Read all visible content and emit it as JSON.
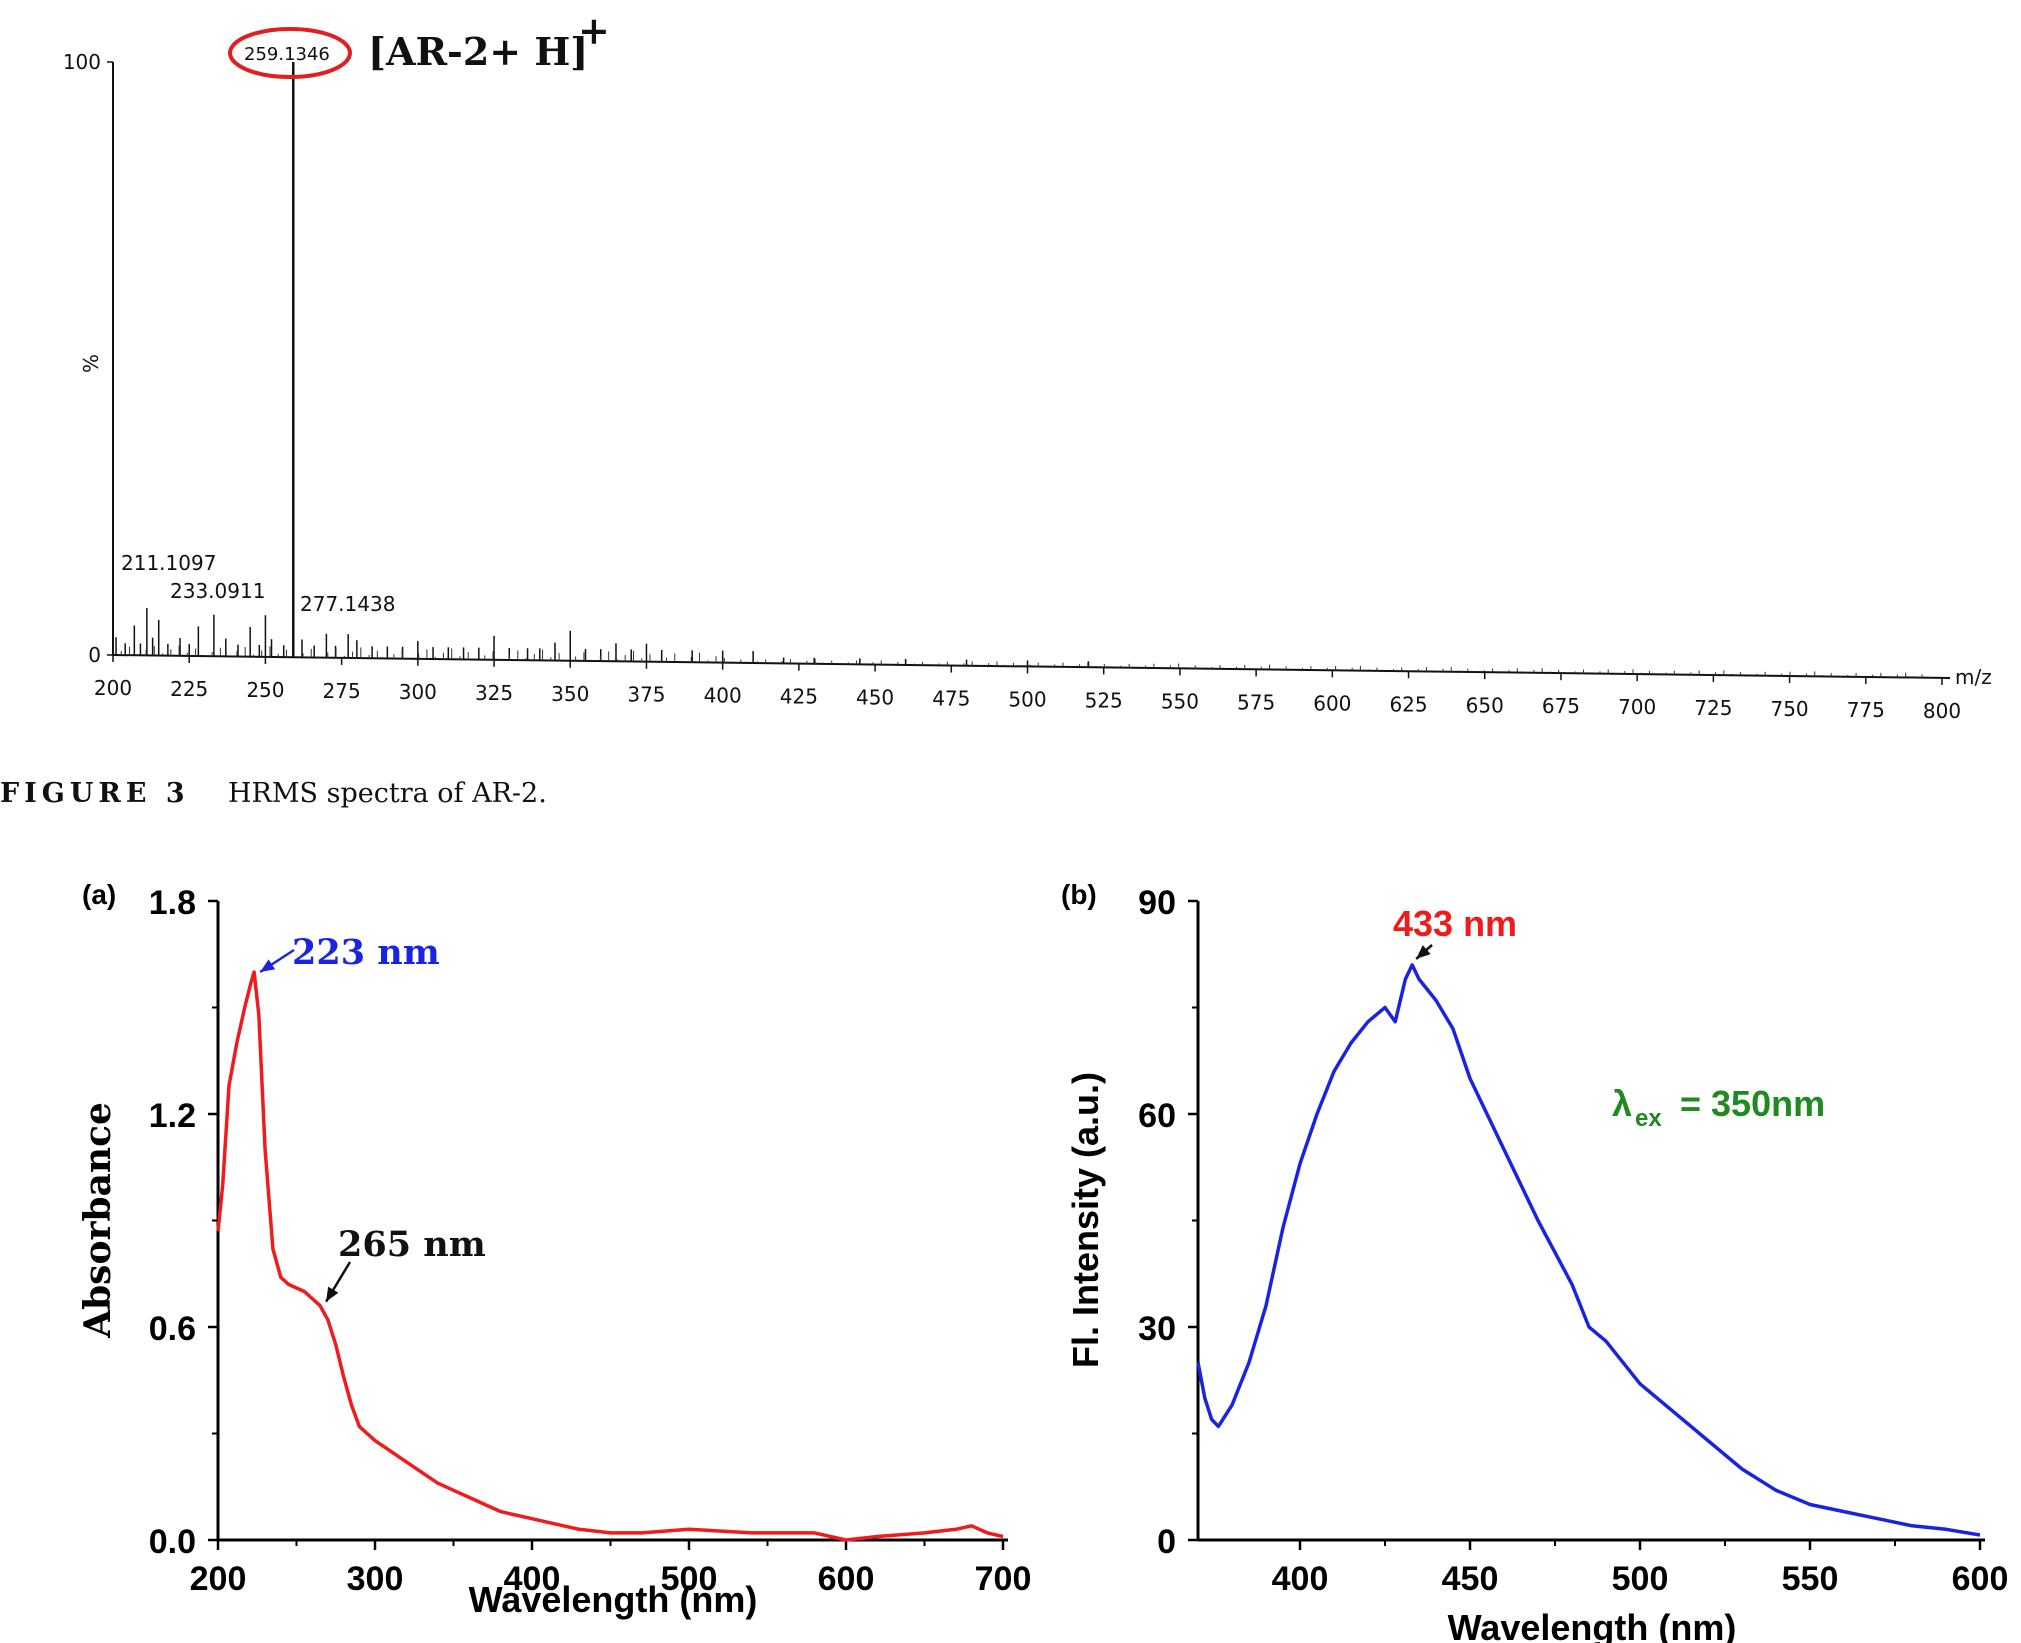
{
  "figure3": {
    "caption_label": "FIGURE 3",
    "caption_text": "HRMS spectra of AR-2.",
    "chart_data": {
      "type": "bar",
      "xlabel": "m/z",
      "ylabel": "%",
      "xlim": [
        200,
        800
      ],
      "ylim": [
        0,
        100
      ],
      "x_ticks": [
        "200",
        "225",
        "250",
        "275",
        "300",
        "325",
        "350",
        "375",
        "400",
        "425",
        "450",
        "475",
        "500",
        "525",
        "550",
        "575",
        "600",
        "625",
        "650",
        "675",
        "700",
        "725",
        "750",
        "775",
        "800"
      ],
      "y_ticks": [
        "0",
        "100"
      ],
      "x": [
        201,
        204,
        207,
        209,
        211.1097,
        213,
        215,
        218,
        222,
        225,
        228,
        233.0911,
        237,
        241,
        245,
        248,
        250,
        252,
        256,
        259.1346,
        262,
        266,
        270,
        273,
        277.1438,
        280,
        285,
        290,
        295,
        300,
        305,
        310,
        315,
        320,
        325,
        330,
        336,
        340,
        345,
        350,
        355,
        360,
        365,
        370,
        375,
        380,
        390,
        400,
        410,
        420,
        430,
        445,
        460,
        480,
        500,
        520
      ],
      "values": [
        3,
        2,
        5,
        2,
        8,
        3,
        6,
        2,
        3,
        2,
        5,
        7,
        3,
        2,
        5,
        2,
        7,
        3,
        2,
        100,
        3,
        2,
        4,
        2,
        4,
        3,
        2,
        2,
        2,
        3,
        2,
        2,
        2,
        2,
        4,
        2,
        2,
        2,
        3,
        5,
        2,
        2,
        3,
        2,
        3,
        2,
        2,
        2,
        2,
        1,
        1,
        1,
        1,
        1,
        1,
        1
      ],
      "annotations": [
        {
          "label": "259.1346",
          "x": 259.1346
        },
        {
          "label": "211.1097",
          "x": 211.1097
        },
        {
          "label": "233.0911",
          "x": 233.0911
        },
        {
          "label": "277.1438",
          "x": 277.1438
        }
      ],
      "ion_label": "[AR-2+ H]",
      "ion_charge": "+",
      "highlight_color": "#e02020"
    }
  },
  "panel_a": {
    "label": "(a)",
    "chart_data": {
      "type": "line",
      "xlabel": "Wavelength (nm)",
      "ylabel": "Absorbance",
      "xlim": [
        200,
        700
      ],
      "ylim": [
        0,
        1.8
      ],
      "x_ticks": [
        "200",
        "300",
        "400",
        "500",
        "600",
        "700"
      ],
      "y_ticks": [
        "0.0",
        "0.6",
        "1.2",
        "1.8"
      ],
      "color": "#ee1c1c",
      "series": [
        {
          "x": [
            200,
            203,
            207,
            212,
            217,
            221,
            223,
            226,
            230,
            235,
            240,
            245,
            250,
            255,
            260,
            265,
            270,
            275,
            280,
            285,
            290,
            300,
            320,
            340,
            350,
            360,
            370,
            380,
            400,
            420,
            430,
            450,
            470,
            500,
            540,
            580,
            600,
            620,
            650,
            670,
            680,
            690,
            700
          ],
          "y": [
            0.87,
            1.0,
            1.28,
            1.4,
            1.5,
            1.57,
            1.6,
            1.48,
            1.1,
            0.82,
            0.74,
            0.72,
            0.71,
            0.7,
            0.68,
            0.66,
            0.62,
            0.55,
            0.46,
            0.38,
            0.32,
            0.28,
            0.22,
            0.16,
            0.14,
            0.12,
            0.1,
            0.08,
            0.06,
            0.04,
            0.03,
            0.02,
            0.02,
            0.03,
            0.02,
            0.02,
            0.0,
            0.01,
            0.02,
            0.03,
            0.04,
            0.02,
            0.01
          ]
        }
      ],
      "annotations": [
        {
          "label": "223 nm",
          "x": 223,
          "y": 1.6,
          "color": "#1a24e0"
        },
        {
          "label": "265 nm",
          "x": 265,
          "y": 0.66,
          "color": "#111111"
        }
      ]
    }
  },
  "panel_b": {
    "label": "(b)",
    "chart_data": {
      "type": "line",
      "xlabel": "Wavelength (nm)",
      "ylabel": "Fl. Intensity (a.u.)",
      "xlim": [
        370,
        600
      ],
      "ylim": [
        0,
        90
      ],
      "x_ticks": [
        "400",
        "450",
        "500",
        "550",
        "600"
      ],
      "y_ticks": [
        "0",
        "30",
        "60",
        "90"
      ],
      "color": "#1a24e0",
      "series": [
        {
          "x": [
            370,
            372,
            374,
            376,
            380,
            385,
            390,
            395,
            400,
            405,
            410,
            415,
            420,
            425,
            428,
            431,
            433,
            435,
            440,
            445,
            450,
            455,
            460,
            470,
            480,
            485,
            490,
            500,
            510,
            520,
            530,
            540,
            550,
            560,
            570,
            580,
            590,
            600
          ],
          "y": [
            25,
            20,
            17,
            16,
            19,
            25,
            33,
            44,
            53,
            60,
            66,
            70,
            73,
            75,
            73,
            79,
            81,
            79,
            76,
            72,
            65,
            60,
            55,
            45,
            36,
            30,
            28,
            22,
            18,
            14,
            10,
            7,
            5,
            4,
            3,
            2,
            1.5,
            0.7
          ]
        }
      ],
      "annotations": [
        {
          "label": "433 nm",
          "x": 433,
          "y": 81,
          "color": "#ee1c1c"
        }
      ],
      "excitation_text": "= 350nm",
      "excitation_symbol": "λ",
      "excitation_subscript": "ex",
      "excitation_color": "#1f8a1f"
    }
  }
}
